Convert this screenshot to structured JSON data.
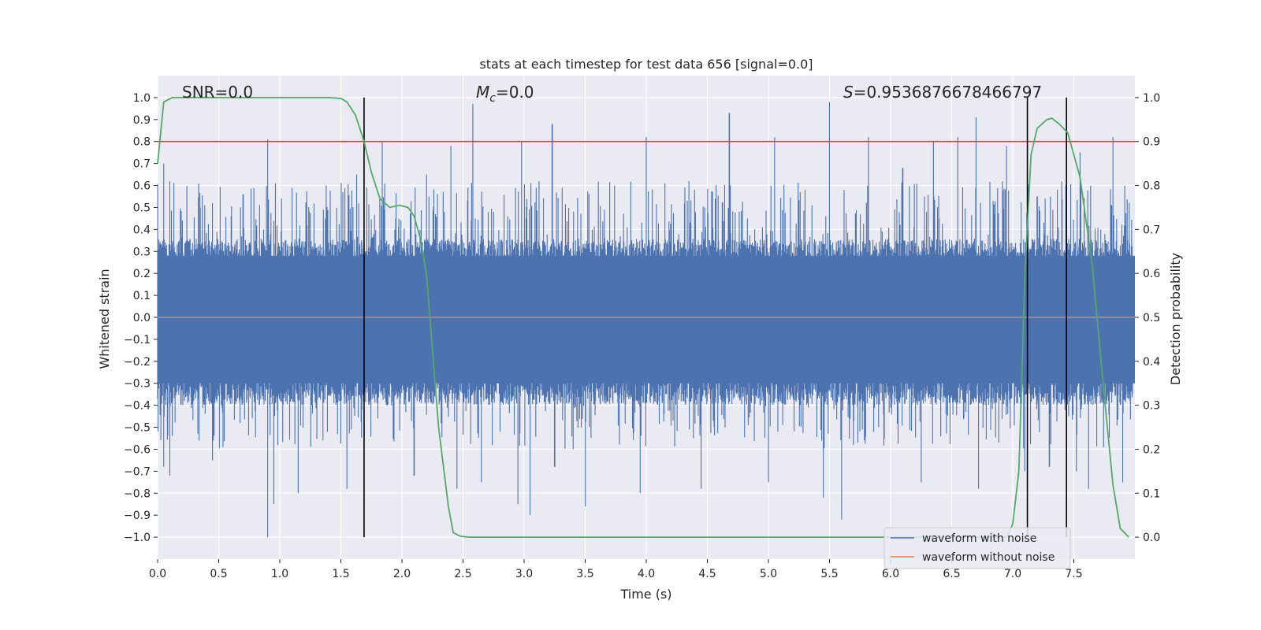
{
  "chart_data": {
    "type": "line",
    "title": "stats at each timestep for test data 656 [signal=0.0]",
    "xlabel": "Time (s)",
    "ylabel_left": "Whitened strain",
    "ylabel_right": "Detection probability",
    "xlim": [
      0.0,
      8.0
    ],
    "ylim_left": [
      -1.1,
      1.1
    ],
    "ylim_right": [
      -0.05,
      1.05
    ],
    "x_ticks": [
      "0.0",
      "0.5",
      "1.0",
      "1.5",
      "2.0",
      "2.5",
      "3.0",
      "3.5",
      "4.0",
      "4.5",
      "5.0",
      "5.5",
      "6.0",
      "6.5",
      "7.0",
      "7.5"
    ],
    "y_left_ticks": [
      "1.0",
      "0.9",
      "0.8",
      "0.7",
      "0.6",
      "0.5",
      "0.4",
      "0.3",
      "0.2",
      "0.1",
      "0.0",
      "−0.1",
      "−0.2",
      "−0.3",
      "−0.4",
      "−0.5",
      "−0.6",
      "−0.7",
      "−0.8",
      "−0.9",
      "−1.0"
    ],
    "y_right_ticks": [
      "1.0",
      "0.9",
      "0.8",
      "0.7",
      "0.6",
      "0.5",
      "0.4",
      "0.3",
      "0.2",
      "0.1",
      "0.0"
    ],
    "annotations": {
      "snr": "SNR=0.0",
      "mc_symbol": "M",
      "mc_sub": "c",
      "mc_value": "=0.0",
      "s_symbol": "S",
      "s_value": "=0.9536876678466797"
    },
    "legend": [
      "waveform with noise",
      "waveform without noise"
    ],
    "threshold": 0.9,
    "vertical_lines": [
      1.69,
      7.12,
      7.44
    ],
    "series": [
      {
        "name": "waveform with noise",
        "color": "#4c72b0",
        "noise_baseline_high": 0.34,
        "noise_baseline_low": -0.38,
        "spike_peaks": [
          [
            0.05,
            0.7
          ],
          [
            0.1,
            0.62
          ],
          [
            0.35,
            0.5
          ],
          [
            0.45,
            0.52
          ],
          [
            0.7,
            0.56
          ],
          [
            0.9,
            0.81
          ],
          [
            1.1,
            0.59
          ],
          [
            1.38,
            0.6
          ],
          [
            1.63,
            0.65
          ],
          [
            1.84,
            0.8
          ],
          [
            2.2,
            0.65
          ],
          [
            2.4,
            0.78
          ],
          [
            2.58,
            0.97
          ],
          [
            2.98,
            0.8
          ],
          [
            3.23,
            0.88
          ],
          [
            3.74,
            0.6
          ],
          [
            4.0,
            0.82
          ],
          [
            4.35,
            0.62
          ],
          [
            4.68,
            0.93
          ],
          [
            5.05,
            0.82
          ],
          [
            5.3,
            0.58
          ],
          [
            5.5,
            0.98
          ],
          [
            5.82,
            0.82
          ],
          [
            6.1,
            0.68
          ],
          [
            6.35,
            0.8
          ],
          [
            6.55,
            0.82
          ],
          [
            6.7,
            0.91
          ],
          [
            6.95,
            0.78
          ],
          [
            7.2,
            0.55
          ],
          [
            7.55,
            0.75
          ],
          [
            7.82,
            0.82
          ]
        ],
        "spike_troughs": [
          [
            0.05,
            -0.68
          ],
          [
            0.1,
            -0.72
          ],
          [
            0.45,
            -0.65
          ],
          [
            0.9,
            -1.0
          ],
          [
            0.95,
            -0.85
          ],
          [
            1.15,
            -0.8
          ],
          [
            1.55,
            -0.78
          ],
          [
            2.1,
            -0.72
          ],
          [
            2.45,
            -0.78
          ],
          [
            2.65,
            -0.75
          ],
          [
            2.95,
            -0.85
          ],
          [
            3.05,
            -0.9
          ],
          [
            3.25,
            -0.68
          ],
          [
            3.5,
            -0.86
          ],
          [
            3.95,
            -0.8
          ],
          [
            4.45,
            -0.78
          ],
          [
            5.0,
            -0.75
          ],
          [
            5.45,
            -0.82
          ],
          [
            5.6,
            -0.92
          ],
          [
            6.25,
            -0.75
          ],
          [
            6.72,
            -0.78
          ],
          [
            7.1,
            -0.7
          ],
          [
            7.3,
            -0.68
          ],
          [
            7.52,
            -0.7
          ],
          [
            7.62,
            -0.78
          ],
          [
            7.9,
            -0.75
          ]
        ]
      },
      {
        "name": "waveform without noise",
        "color": "#dd8452",
        "constant": 0.0
      },
      {
        "name": "detection probability",
        "color": "#55a868",
        "axis": "right",
        "x": [
          0.0,
          0.05,
          0.12,
          0.25,
          0.5,
          1.0,
          1.4,
          1.5,
          1.55,
          1.62,
          1.69,
          1.75,
          1.82,
          1.9,
          1.98,
          2.05,
          2.1,
          2.15,
          2.2,
          2.3,
          2.38,
          2.42,
          2.48,
          2.55,
          3.0,
          5.0,
          6.5,
          6.95,
          7.0,
          7.05,
          7.1,
          7.15,
          7.2,
          7.28,
          7.32,
          7.38,
          7.45,
          7.55,
          7.65,
          7.75,
          7.82,
          7.88,
          7.95
        ],
        "values": [
          0.85,
          0.99,
          1.0,
          1.0,
          1.0,
          1.0,
          1.0,
          0.998,
          0.99,
          0.96,
          0.9,
          0.83,
          0.77,
          0.75,
          0.755,
          0.75,
          0.73,
          0.68,
          0.6,
          0.25,
          0.07,
          0.01,
          0.002,
          0.0,
          0.0,
          0.0,
          0.0,
          0.0,
          0.03,
          0.15,
          0.6,
          0.87,
          0.93,
          0.95,
          0.953,
          0.94,
          0.92,
          0.82,
          0.62,
          0.32,
          0.12,
          0.02,
          0.0
        ]
      }
    ]
  }
}
